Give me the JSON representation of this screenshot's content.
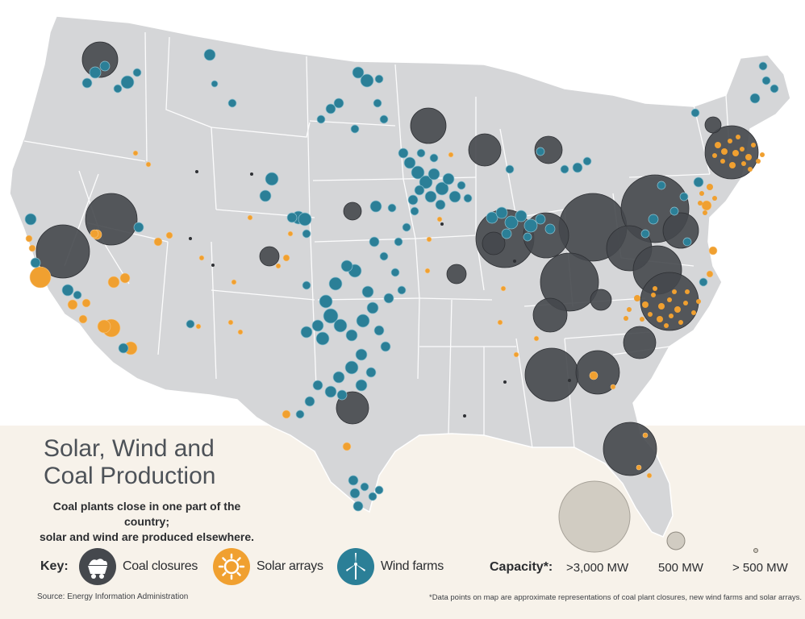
{
  "title_line1": "Solar, Wind and",
  "title_line2": "Coal Production",
  "subtitle_line1": "Coal plants close in one part of the country;",
  "subtitle_line2": "solar and wind are produced elsewhere.",
  "key": {
    "label": "Key:",
    "coal": "Coal closures",
    "solar": "Solar arrays",
    "wind": "Wind farms"
  },
  "capacity": {
    "label": "Capacity*:",
    "large": ">3,000 MW",
    "medium": "500 MW",
    "small": "> 500 MW"
  },
  "source": "Source: Energy Information Administration",
  "footnote": "*Data points on map are approximate representations of coal plant closures, new wind farms and solar arrays.",
  "colors": {
    "coal": "#4a4d52",
    "solar": "#f0a030",
    "wind": "#2b7f97",
    "land": "#d5d6d8",
    "background": "#f7f2ea",
    "capacity_bubble": "#d1ccc2"
  },
  "icons": {
    "coal": "coal-cart-icon",
    "solar": "sun-icon",
    "wind": "wind-turbine-icon"
  }
}
